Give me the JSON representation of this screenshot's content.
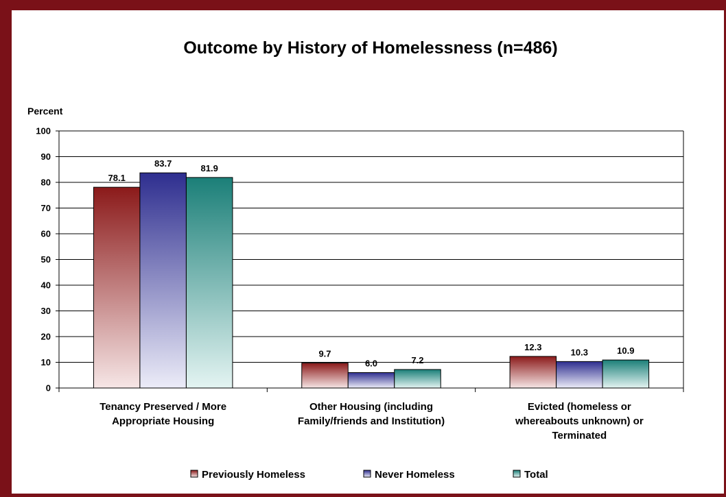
{
  "chart_data": {
    "type": "bar",
    "title": "Outcome by History of Homelessness (n=486)",
    "ylabel": "Percent",
    "xlabel": "",
    "ylim": [
      0,
      100
    ],
    "yticks": [
      0,
      10,
      20,
      30,
      40,
      50,
      60,
      70,
      80,
      90,
      100
    ],
    "grid": true,
    "legend_position": "bottom",
    "categories": [
      [
        "Tenancy Preserved / More",
        "Appropriate Housing"
      ],
      [
        "Other Housing (including",
        "Family/friends and Institution)"
      ],
      [
        "Evicted (homeless or",
        "whereabouts unknown) or",
        "Terminated"
      ]
    ],
    "series": [
      {
        "name": "Previously Homeless",
        "values": [
          78.1,
          9.7,
          12.3
        ],
        "labels": [
          "78.1",
          "9.7",
          "12.3"
        ],
        "color": "#8b1a1a",
        "light": "#f6e6e6"
      },
      {
        "name": "Never Homeless",
        "values": [
          83.7,
          6.0,
          10.3
        ],
        "labels": [
          "83.7",
          "6.0",
          "10.3"
        ],
        "color": "#2e2e8f",
        "light": "#ececf8"
      },
      {
        "name": "Total",
        "values": [
          81.9,
          7.2,
          10.9
        ],
        "labels": [
          "81.9",
          "7.2",
          "10.9"
        ],
        "color": "#1b7f78",
        "light": "#e4f4f2"
      }
    ]
  },
  "frame_color": "#7a1118"
}
